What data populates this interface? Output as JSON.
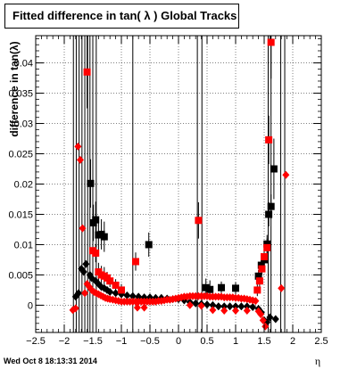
{
  "chart_data": {
    "type": "scatter",
    "title": "Fitted difference in tan( λ )  Global Tracks",
    "xlabel": "η",
    "ylabel": "difference in tan(λ)",
    "xlim": [
      -2.5,
      2.5
    ],
    "ylim": [
      -0.0045,
      0.0445
    ],
    "x_ticks": [
      -2.5,
      -2,
      -1.5,
      -1,
      -0.5,
      0,
      0.5,
      1,
      1.5,
      2,
      2.5
    ],
    "x_tick_labels": [
      "−2.5",
      "−2",
      "−1.5",
      "−1",
      "−0.5",
      "0",
      "0.5",
      "1",
      "1.5",
      "2",
      "2.5"
    ],
    "y_ticks": [
      0,
      0.005,
      0.01,
      0.015,
      0.02,
      0.025,
      0.03,
      0.035,
      0.04
    ],
    "y_tick_labels": [
      "0",
      "0.005",
      "0.01",
      "0.015",
      "0.02",
      "0.025",
      "0.03",
      "0.035",
      "0.04"
    ],
    "grid": true,
    "series": [
      {
        "marker": "square",
        "color": "#000000",
        "points": [
          [
            -1.54,
            0.0201,
            0.004
          ],
          [
            -1.49,
            0.0136,
            0.003
          ],
          [
            -1.45,
            0.0141,
            0.003
          ],
          [
            -1.4,
            0.0116,
            0.0025
          ],
          [
            -1.35,
            0.0117,
            0.0025
          ],
          [
            -1.3,
            0.0113,
            0.0025
          ],
          [
            -0.52,
            0.01,
            0.002
          ],
          [
            0.48,
            0.0029,
            0.0015
          ],
          [
            0.55,
            0.0026,
            0.0015
          ],
          [
            0.75,
            0.0029,
            0.001
          ],
          [
            1.0,
            0.0028,
            0.001
          ],
          [
            1.4,
            0.0048,
            0.001
          ],
          [
            1.45,
            0.0066,
            0.001
          ],
          [
            1.5,
            0.0075,
            0.0015
          ],
          [
            1.55,
            0.0101,
            0.0015
          ],
          [
            1.58,
            0.015,
            0.002
          ],
          [
            1.62,
            0.0163,
            0.002
          ],
          [
            1.67,
            0.0225,
            0.005
          ]
        ]
      },
      {
        "marker": "diamond",
        "color": "#000000",
        "points": [
          [
            -1.8,
            0.0014
          ],
          [
            -1.75,
            0.002
          ],
          [
            -1.7,
            0.006
          ],
          [
            -1.66,
            0.0055
          ],
          [
            -1.62,
            0.0068
          ],
          [
            -1.55,
            0.005
          ],
          [
            -1.52,
            0.0045
          ],
          [
            -1.45,
            0.004
          ],
          [
            -1.4,
            0.0035
          ],
          [
            -1.35,
            0.003
          ],
          [
            -1.3,
            0.0028
          ],
          [
            -1.25,
            0.0025
          ],
          [
            -1.2,
            0.0022
          ],
          [
            -1.1,
            0.002
          ],
          [
            -1.0,
            0.0018
          ],
          [
            -0.9,
            0.0016
          ],
          [
            -0.8,
            0.0015
          ],
          [
            -0.7,
            0.0014
          ],
          [
            -0.6,
            0.0013
          ],
          [
            -0.5,
            0.0013
          ],
          [
            -0.4,
            0.0012
          ],
          [
            -0.3,
            0.0012
          ],
          [
            -0.2,
            0.0011
          ],
          [
            -0.1,
            0.001
          ],
          [
            0.0,
            0.001
          ],
          [
            0.1,
            0.0008
          ],
          [
            0.2,
            0.0005
          ],
          [
            0.3,
            0.0003
          ],
          [
            0.4,
            0.0002
          ],
          [
            0.5,
            0.0001
          ],
          [
            0.6,
            0.0
          ],
          [
            0.7,
            -0.0002
          ],
          [
            0.8,
            -0.0002
          ],
          [
            0.9,
            -0.0002
          ],
          [
            1.0,
            -0.0002
          ],
          [
            1.1,
            -0.0002
          ],
          [
            1.2,
            -0.0002
          ],
          [
            1.3,
            -0.0003
          ],
          [
            1.4,
            -0.0006
          ],
          [
            1.45,
            -0.0012
          ],
          [
            1.5,
            -0.0025
          ],
          [
            1.55,
            -0.0028
          ],
          [
            1.6,
            -0.002
          ],
          [
            1.7,
            -0.0023
          ]
        ]
      },
      {
        "marker": "square",
        "color": "#ff0000",
        "points": [
          [
            -1.6,
            0.0385,
            0.006
          ],
          [
            -1.5,
            0.009,
            0.0015
          ],
          [
            -1.45,
            0.0086,
            0.0015
          ],
          [
            -1.4,
            0.0055,
            0.0015
          ],
          [
            -1.35,
            0.005,
            0.0015
          ],
          [
            -1.3,
            0.0048,
            0.0015
          ],
          [
            -1.25,
            0.0045,
            0.001
          ],
          [
            -0.75,
            0.0072,
            0.0015
          ],
          [
            -1.2,
            0.004,
            0.001
          ],
          [
            -1.1,
            0.0033,
            0.001
          ],
          [
            -1.0,
            0.0025,
            0.001
          ],
          [
            0.35,
            0.014,
            0.003
          ],
          [
            1.38,
            0.0025,
            0.001
          ],
          [
            1.42,
            0.004,
            0.001
          ],
          [
            1.46,
            0.006,
            0.001
          ],
          [
            1.5,
            0.008,
            0.001
          ],
          [
            1.55,
            0.0095,
            0.0015
          ],
          [
            1.58,
            0.0273,
            0.004
          ],
          [
            1.62,
            0.0434,
            0.006
          ]
        ]
      },
      {
        "marker": "diamond",
        "color": "#ff0000",
        "points": [
          [
            -1.85,
            -0.0008
          ],
          [
            -1.8,
            -0.0005
          ],
          [
            -1.76,
            0.0262
          ],
          [
            -1.72,
            0.024
          ],
          [
            -1.68,
            0.0127
          ],
          [
            -1.64,
            0.002
          ],
          [
            -1.6,
            0.0035
          ],
          [
            -1.56,
            0.003
          ],
          [
            -1.52,
            0.0025
          ],
          [
            -1.48,
            0.0022
          ],
          [
            -1.44,
            0.002
          ],
          [
            -1.4,
            0.0018
          ],
          [
            -1.36,
            0.0016
          ],
          [
            -1.32,
            0.0014
          ],
          [
            -1.28,
            0.0012
          ],
          [
            -1.24,
            0.0011
          ],
          [
            -1.2,
            0.001
          ],
          [
            -1.15,
            0.0009
          ],
          [
            -1.1,
            0.0008
          ],
          [
            -1.05,
            0.0007
          ],
          [
            -1.0,
            0.0006
          ],
          [
            -0.95,
            0.0006
          ],
          [
            -0.9,
            0.0006
          ],
          [
            -0.85,
            0.0006
          ],
          [
            -0.8,
            0.0006
          ],
          [
            -0.75,
            0.0006
          ],
          [
            -0.7,
            0.0006
          ],
          [
            -0.65,
            0.0006
          ],
          [
            -0.6,
            0.0006
          ],
          [
            -0.55,
            0.0006
          ],
          [
            -0.5,
            0.0006
          ],
          [
            -0.45,
            0.0006
          ],
          [
            -0.4,
            0.0006
          ],
          [
            -0.35,
            0.0007
          ],
          [
            -0.3,
            0.0007
          ],
          [
            -0.25,
            0.0008
          ],
          [
            -0.2,
            0.0009
          ],
          [
            -0.15,
            0.0009
          ],
          [
            -0.1,
            0.001
          ],
          [
            -0.05,
            0.0011
          ],
          [
            0.0,
            0.0012
          ],
          [
            0.05,
            0.0013
          ],
          [
            0.1,
            0.0014
          ],
          [
            0.15,
            0.0014
          ],
          [
            0.2,
            0.0015
          ],
          [
            0.25,
            0.0015
          ],
          [
            0.3,
            0.0015
          ],
          [
            0.35,
            0.0015
          ],
          [
            0.4,
            0.0015
          ],
          [
            0.45,
            0.0015
          ],
          [
            0.5,
            0.0015
          ],
          [
            0.55,
            0.0014
          ],
          [
            0.6,
            0.0014
          ],
          [
            0.65,
            0.0014
          ],
          [
            0.7,
            0.0014
          ],
          [
            0.75,
            0.0014
          ],
          [
            0.8,
            0.0013
          ],
          [
            0.85,
            0.0013
          ],
          [
            0.9,
            0.0013
          ],
          [
            0.95,
            0.0013
          ],
          [
            1.0,
            0.0012
          ],
          [
            1.05,
            0.0012
          ],
          [
            1.1,
            0.0011
          ],
          [
            1.15,
            0.0011
          ],
          [
            1.2,
            0.001
          ],
          [
            1.25,
            0.0009
          ],
          [
            1.3,
            0.0008
          ],
          [
            1.35,
            0.0007
          ],
          [
            1.8,
            0.0028
          ],
          [
            1.88,
            0.0215
          ],
          [
            -0.72,
            -0.0004
          ],
          [
            -0.6,
            -0.0004
          ],
          [
            0.2,
            0.0
          ],
          [
            0.4,
            -0.0001
          ],
          [
            0.6,
            -0.0008
          ],
          [
            0.8,
            -0.0009
          ],
          [
            1.0,
            -0.0009
          ],
          [
            1.2,
            -0.0009
          ],
          [
            1.4,
            -0.001
          ],
          [
            1.44,
            -0.0015
          ],
          [
            1.48,
            -0.0025
          ],
          [
            1.52,
            -0.0035
          ]
        ]
      }
    ]
  },
  "footer": {
    "timestamp": "Wed Oct  8 18:13:31 2014"
  }
}
